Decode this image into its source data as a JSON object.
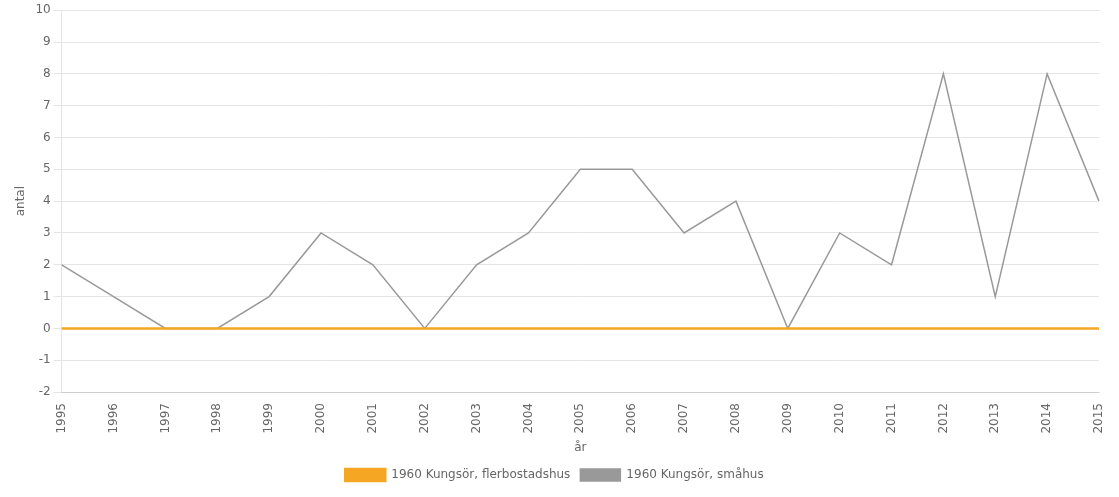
{
  "chart_data": {
    "type": "line",
    "categories": [
      "1995",
      "1996",
      "1997",
      "1998",
      "1999",
      "2000",
      "2001",
      "2002",
      "2003",
      "2004",
      "2005",
      "2006",
      "2007",
      "2008",
      "2009",
      "2010",
      "2011",
      "2012",
      "2013",
      "2014",
      "2015"
    ],
    "series": [
      {
        "name": "1960 Kungsör, flerbostadshus",
        "color": "#f5a623",
        "values": [
          0,
          0,
          0,
          0,
          0,
          0,
          0,
          0,
          0,
          0,
          0,
          0,
          0,
          0,
          0,
          0,
          0,
          0,
          0,
          0,
          0
        ]
      },
      {
        "name": "1960 Kungsör, småhus",
        "color": "#999999",
        "values": [
          2,
          1,
          0,
          0,
          1,
          3,
          2,
          0,
          2,
          3,
          5,
          5,
          3,
          4,
          0,
          3,
          2,
          8,
          1,
          8,
          4
        ]
      }
    ],
    "xlabel": "år",
    "ylabel": "antal",
    "ylim": [
      -2,
      10
    ],
    "yticks": [
      -2,
      -1,
      0,
      1,
      2,
      3,
      4,
      5,
      6,
      7,
      8,
      9,
      10
    ],
    "grid": "y",
    "legend": "bottom"
  }
}
